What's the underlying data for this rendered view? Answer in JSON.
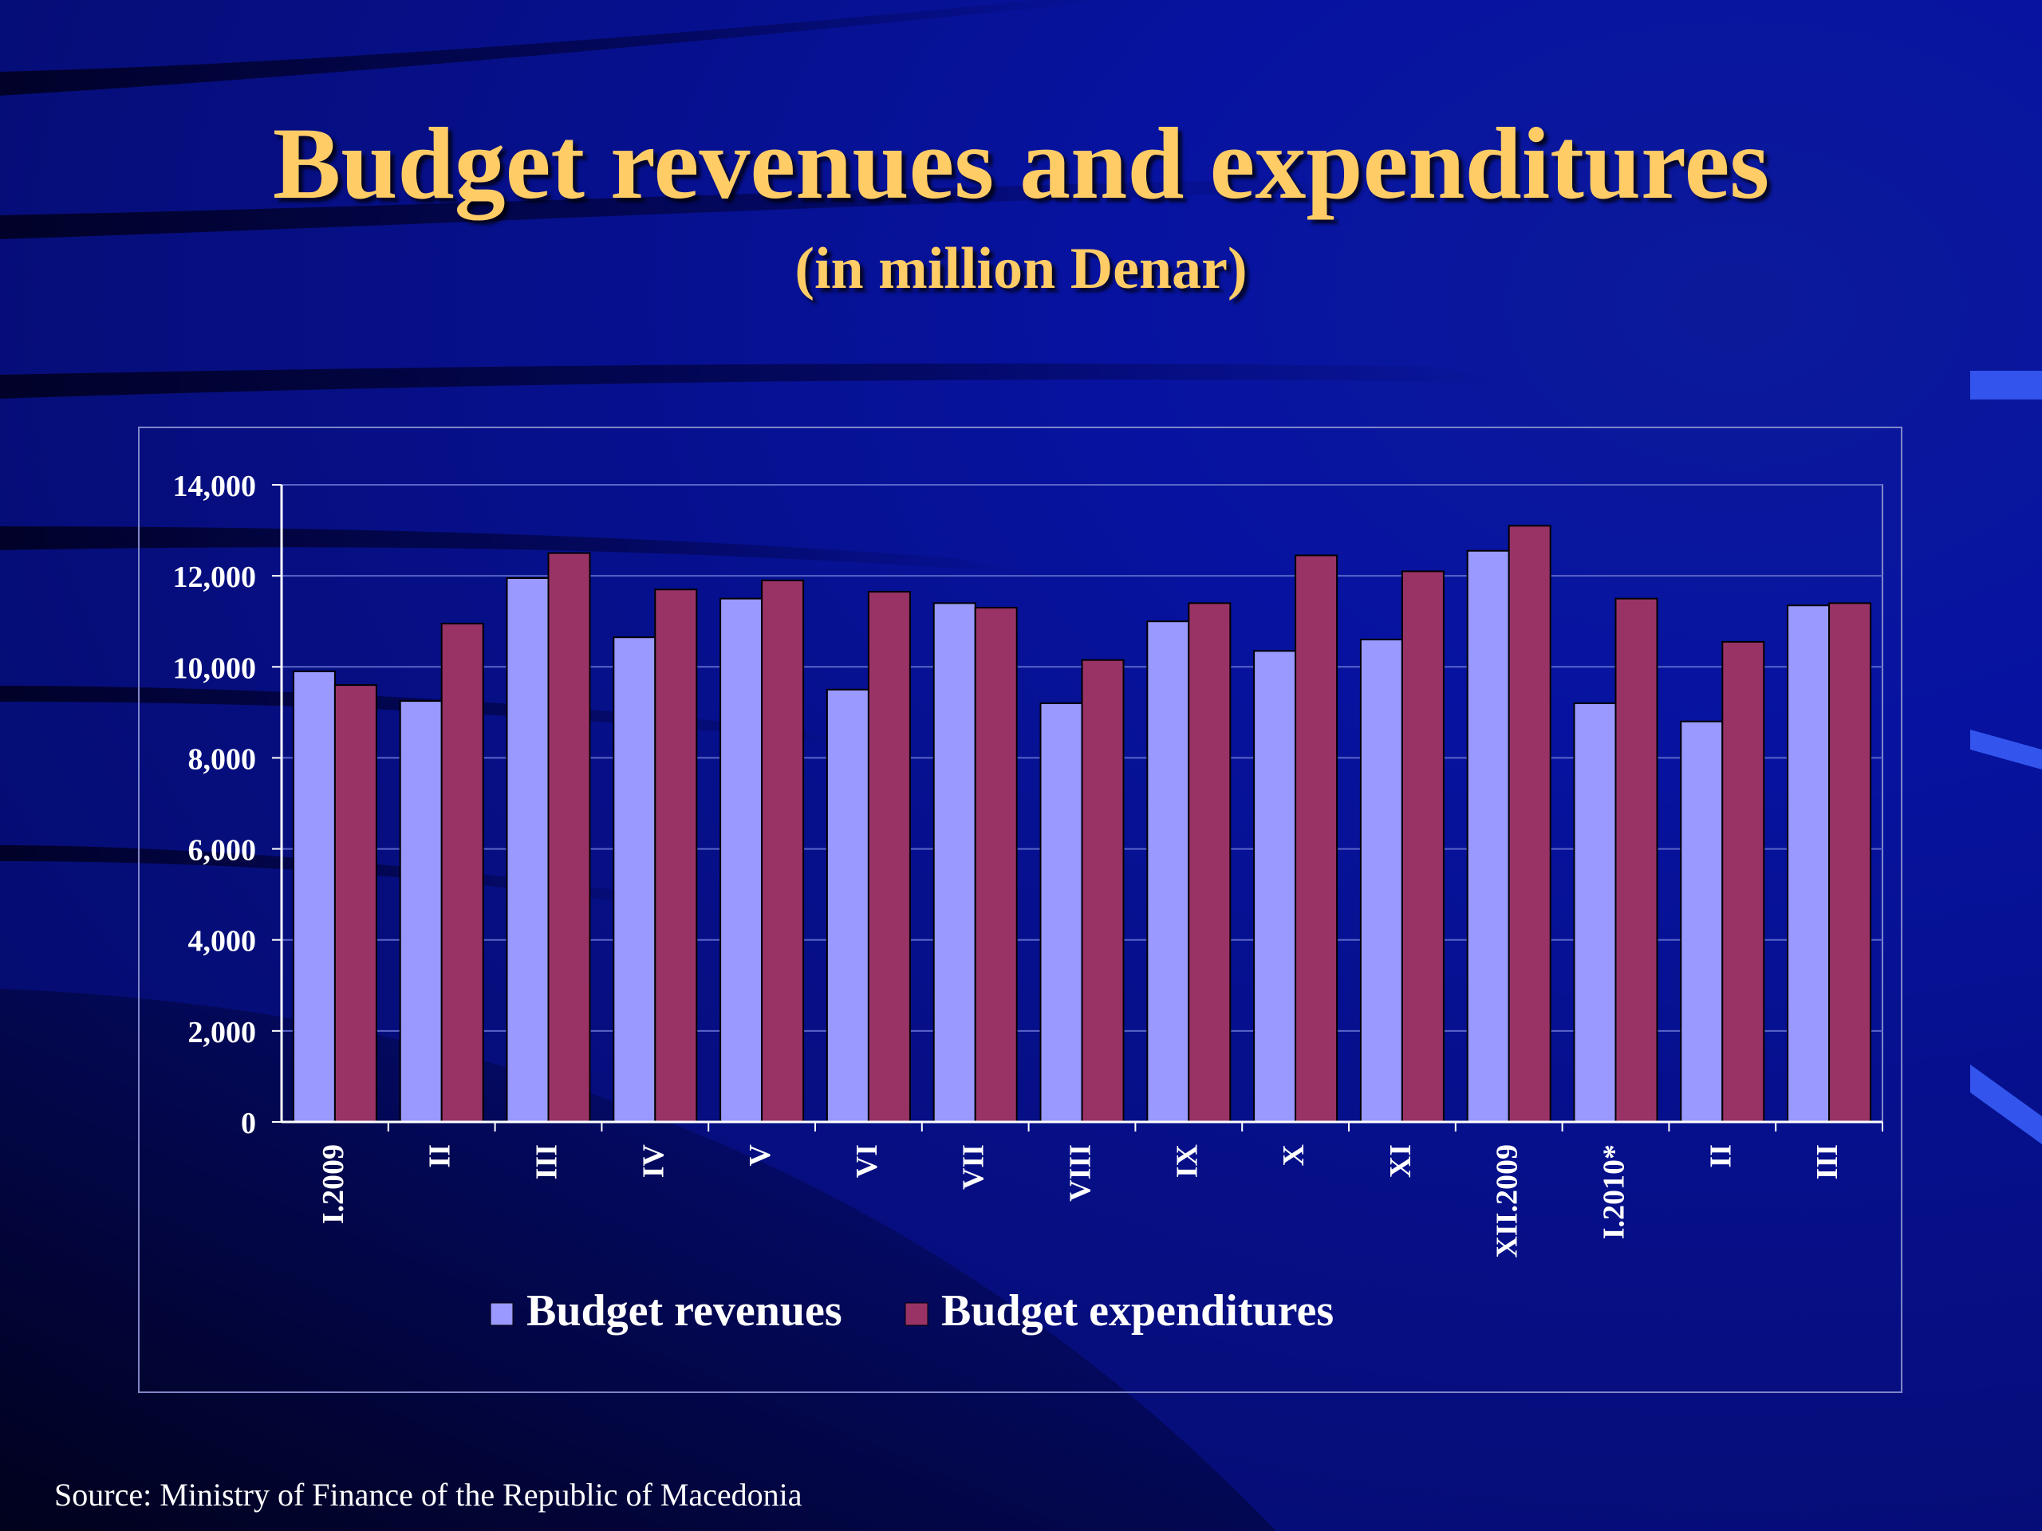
{
  "slide": {
    "title": "Budget revenues and expenditures",
    "subtitle": "(in million Denar)",
    "source": "Source: Ministry of Finance of the Republic of Macedonia"
  },
  "colors": {
    "background": "#0713a0",
    "title": "#ffcc66",
    "revenues": "#9999ff",
    "expenditures": "#993366",
    "gridline": "#5a64c8",
    "text": "#ffffff"
  },
  "chart_data": {
    "type": "bar",
    "categories": [
      "I.2009",
      "II",
      "III",
      "IV",
      "V",
      "VI",
      "VII",
      "VIII",
      "IX",
      "X",
      "XI",
      "XII.2009",
      "I.2010*",
      "II",
      "III"
    ],
    "series": [
      {
        "name": "Budget revenues",
        "color": "#9999ff",
        "values": [
          9900,
          9250,
          11950,
          10650,
          11500,
          9500,
          11400,
          9200,
          11000,
          10350,
          10600,
          12550,
          9200,
          8800,
          11350
        ]
      },
      {
        "name": "Budget expenditures",
        "color": "#993366",
        "values": [
          9600,
          10950,
          12500,
          11700,
          11900,
          11650,
          11300,
          10150,
          11400,
          12450,
          12100,
          13100,
          11500,
          10550,
          11400
        ]
      }
    ],
    "ylim": [
      0,
      14000
    ],
    "yticks": [
      "0",
      "2,000",
      "4,000",
      "6,000",
      "8,000",
      "10,000",
      "12,000",
      "14,000"
    ],
    "ytick_values": [
      0,
      2000,
      4000,
      6000,
      8000,
      10000,
      12000,
      14000
    ],
    "grid": true,
    "legend_position": "bottom"
  }
}
